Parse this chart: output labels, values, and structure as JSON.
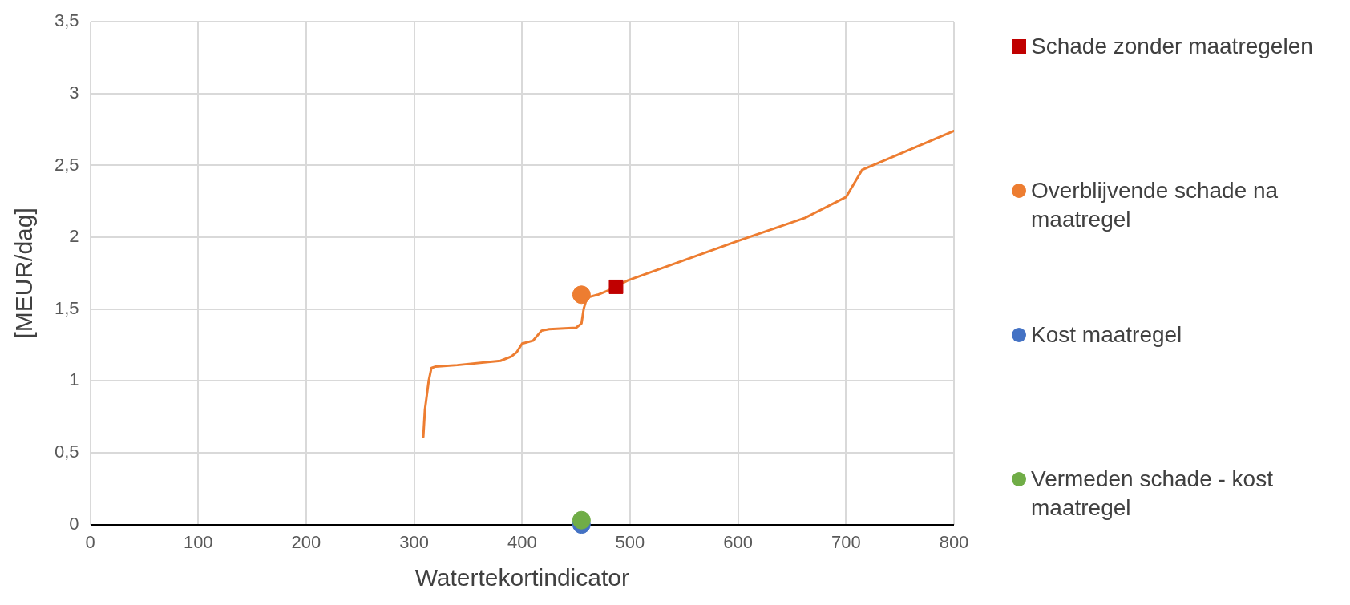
{
  "chart_data": {
    "type": "line",
    "xlabel": "Watertekortindicator",
    "ylabel": "[MEUR/dag]",
    "xlim": [
      0,
      800
    ],
    "xticks": [
      0,
      100,
      200,
      300,
      400,
      500,
      600,
      700,
      800
    ],
    "ylim": [
      0,
      3.5
    ],
    "yticks": [
      0,
      {
        "value": 0.5,
        "label": "0,5"
      },
      1,
      {
        "value": 1.5,
        "label": "1,5"
      },
      2,
      {
        "value": 2.5,
        "label": "2,5"
      },
      3,
      {
        "value": 3.5,
        "label": "3,5"
      }
    ],
    "grid": true,
    "legend": "right",
    "line_style": "solid",
    "series": [
      {
        "color": "#ed7d31",
        "marker": "none",
        "x": [
          308.5,
          310,
          313.5,
          316,
          320,
          340,
          380,
          390,
          395,
          400,
          410,
          418,
          425,
          450,
          455,
          457,
          460,
          470,
          480,
          498,
          600,
          662,
          700,
          715,
          800
        ],
        "values": [
          0.61,
          0.8,
          1.0,
          1.09,
          1.1,
          1.11,
          1.14,
          1.17,
          1.2,
          1.26,
          1.28,
          1.35,
          1.36,
          1.37,
          1.4,
          1.5,
          1.58,
          1.6,
          1.63,
          1.7,
          1.975,
          2.135,
          2.28,
          2.47,
          2.74
        ]
      },
      {
        "type": "scatter",
        "name": "Schade zonder maatregelen",
        "color": "#c00000",
        "marker": "square",
        "x": [
          487
        ],
        "values": [
          1.655
        ]
      },
      {
        "type": "scatter",
        "name": "Overblijvende schade na maatregel",
        "color": "#ed7d31",
        "marker": "circle",
        "x": [
          455
        ],
        "values": [
          1.6
        ]
      },
      {
        "type": "scatter",
        "name": "Kost maatregel",
        "color": "#4472c4",
        "marker": "circle",
        "x": [
          455
        ],
        "values": [
          0
        ]
      },
      {
        "type": "scatter",
        "name": "Vermeden schade - kost maatregel",
        "color": "#70ad47",
        "marker": "circle",
        "x": [
          455
        ],
        "values": [
          0.03
        ]
      }
    ]
  }
}
